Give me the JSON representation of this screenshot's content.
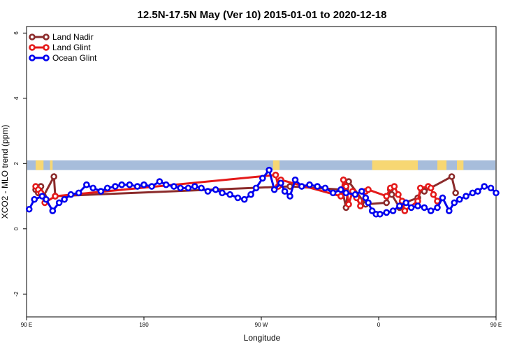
{
  "chart_data": {
    "type": "line",
    "title": "12.5N-17.5N May (Ver 10)   2015-01-01 to 2020-12-18",
    "xlabel": "Longitude",
    "ylabel": "XCO2 - MLO trend (ppm)",
    "xlim": [
      90,
      450
    ],
    "ylim": [
      -2.7,
      6.2
    ],
    "x_ticks": [
      {
        "value": 90,
        "label": "90 E"
      },
      {
        "value": 180,
        "label": "180"
      },
      {
        "value": 270,
        "label": "90 W"
      },
      {
        "value": 360,
        "label": "0"
      },
      {
        "value": 450,
        "label": "90 E"
      },
      {
        "value": 540,
        "label": "180"
      }
    ],
    "y_ticks": [
      {
        "value": -2,
        "label": "-2"
      },
      {
        "value": 0,
        "label": "0"
      },
      {
        "value": 2,
        "label": "2"
      },
      {
        "value": 4,
        "label": "4"
      },
      {
        "value": 6,
        "label": "6"
      }
    ],
    "legend_position": "top-left",
    "map_band": {
      "y_range": [
        1.8,
        2.1
      ],
      "ocean_color": "#a7bddb",
      "land_color": "#f7d773"
    },
    "series": [
      {
        "name": "Land Nadir",
        "color": "#8b2b2b",
        "x": [
          97,
          99,
          101,
          103,
          111,
          112,
          292,
          332,
          335,
          337,
          350,
          366,
          369,
          370,
          376,
          380,
          390,
          393,
          395,
          416,
          419
        ],
        "y": [
          1.2,
          1.1,
          1.3,
          1.0,
          1.6,
          1.0,
          1.3,
          1.2,
          0.65,
          1.45,
          0.75,
          0.8,
          1.2,
          1.05,
          0.65,
          0.8,
          0.95,
          1.2,
          1.15,
          1.6,
          1.1
        ]
      },
      {
        "name": "Land Glint",
        "color": "#e41a1a",
        "x": [
          97,
          99,
          101,
          104,
          112,
          281,
          283,
          285,
          331,
          333,
          335,
          337,
          340,
          343,
          346,
          350,
          352,
          366,
          369,
          372,
          375,
          378,
          380,
          390,
          392,
          398,
          400,
          402,
          405
        ],
        "y": [
          1.3,
          1.2,
          1.1,
          0.8,
          1.0,
          1.65,
          1.3,
          1.5,
          1.0,
          1.5,
          1.3,
          0.75,
          1.15,
          0.95,
          0.7,
          1.15,
          1.2,
          1.0,
          1.25,
          1.3,
          1.05,
          0.85,
          0.55,
          0.85,
          1.25,
          1.3,
          1.25,
          1.05,
          0.85
        ]
      },
      {
        "name": "Ocean Glint",
        "color": "#0000ee",
        "x": [
          92,
          96,
          102,
          105,
          110,
          115,
          119,
          124,
          130,
          136,
          141,
          147,
          152,
          158,
          163,
          169,
          175,
          180,
          186,
          192,
          197,
          203,
          208,
          214,
          219,
          224,
          229,
          235,
          240,
          246,
          252,
          257,
          262,
          266,
          271,
          276,
          280,
          285,
          288,
          292,
          296,
          301,
          307,
          313,
          319,
          325,
          331,
          335,
          342,
          347,
          350,
          352,
          355,
          358,
          361,
          366,
          371,
          376,
          381,
          385,
          390,
          395,
          400,
          405,
          409,
          414,
          418,
          422,
          427,
          432,
          436,
          441,
          446,
          450
        ],
        "y": [
          0.6,
          0.9,
          1.0,
          0.9,
          0.55,
          0.8,
          0.9,
          1.05,
          1.1,
          1.35,
          1.25,
          1.15,
          1.25,
          1.3,
          1.35,
          1.35,
          1.3,
          1.35,
          1.3,
          1.45,
          1.35,
          1.3,
          1.25,
          1.25,
          1.3,
          1.25,
          1.15,
          1.2,
          1.1,
          1.05,
          0.95,
          0.9,
          1.05,
          1.25,
          1.55,
          1.8,
          1.2,
          1.4,
          1.15,
          1.0,
          1.5,
          1.3,
          1.35,
          1.3,
          1.25,
          1.1,
          1.2,
          1.1,
          1.05,
          1.15,
          0.95,
          0.8,
          0.55,
          0.45,
          0.45,
          0.5,
          0.55,
          0.7,
          0.8,
          0.65,
          0.7,
          0.65,
          0.55,
          0.65,
          0.95,
          0.55,
          0.8,
          0.9,
          1.0,
          1.1,
          1.15,
          1.3,
          1.25,
          1.1
        ]
      }
    ]
  }
}
